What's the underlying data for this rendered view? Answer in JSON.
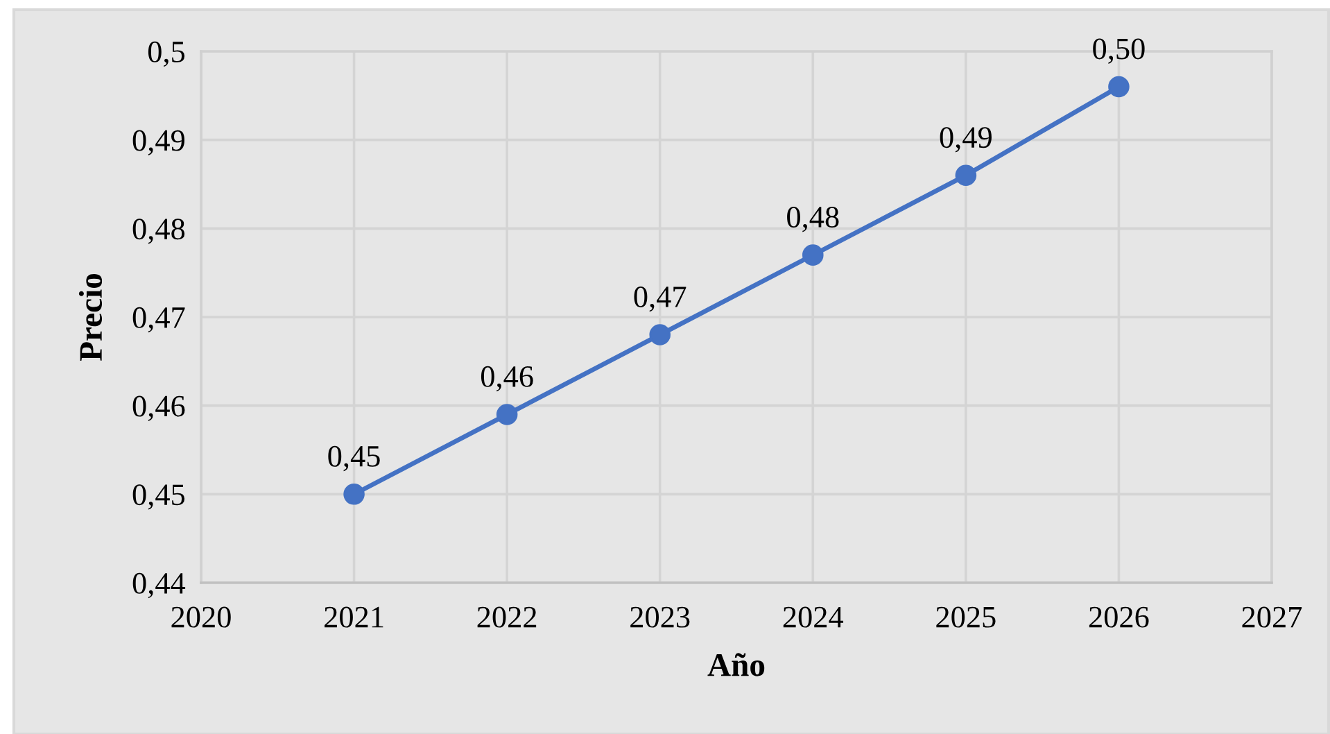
{
  "chart_data": {
    "type": "line",
    "xlabel": "Año",
    "ylabel": "Precio",
    "x": [
      2021,
      2022,
      2023,
      2024,
      2025,
      2026
    ],
    "values": [
      0.45,
      0.459,
      0.468,
      0.477,
      0.486,
      0.496
    ],
    "value_labels": [
      "0,45",
      "0,46",
      "0,47",
      "0,48",
      "0,49",
      "0,50"
    ],
    "color": "#4472c4",
    "xlim": [
      2020,
      2027
    ],
    "xticks": [
      2020,
      2021,
      2022,
      2023,
      2024,
      2025,
      2026,
      2027
    ],
    "ylim": [
      0.44,
      0.5
    ],
    "yticks": [
      {
        "value": 0.44,
        "label": "0,44"
      },
      {
        "value": 0.45,
        "label": "0,45"
      },
      {
        "value": 0.46,
        "label": "0,46"
      },
      {
        "value": 0.47,
        "label": "0,47"
      },
      {
        "value": 0.48,
        "label": "0,48"
      },
      {
        "value": 0.49,
        "label": "0,49"
      },
      {
        "value": 0.5,
        "label": "0,5"
      }
    ],
    "grid": true,
    "marker": "circle",
    "line_style": "solid"
  }
}
